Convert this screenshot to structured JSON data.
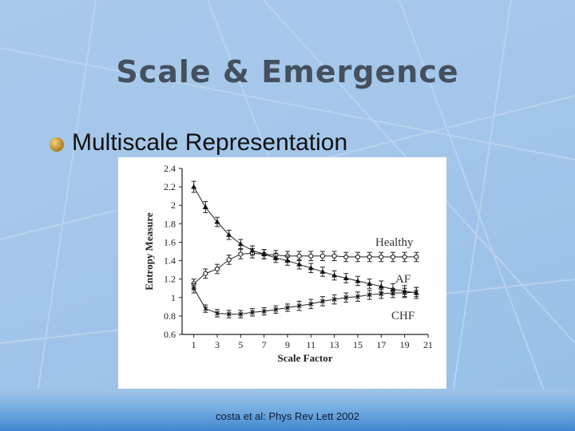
{
  "slide": {
    "title": "Scale & Emergence",
    "bullet": "Multiscale Representation",
    "citation": "costa et al:  Phys Rev Lett  2002"
  },
  "chart_data": {
    "type": "line",
    "xlabel": "Scale Factor",
    "ylabel": "Entropy Measure",
    "xlim": [
      0,
      21
    ],
    "ylim": [
      0.6,
      2.4
    ],
    "x_ticks": [
      "1",
      "3",
      "5",
      "7",
      "9",
      "11",
      "13",
      "15",
      "17",
      "19",
      "21"
    ],
    "y_ticks": [
      "0.6",
      "0.8",
      "1",
      "1.2",
      "1.4",
      "1.6",
      "1.8",
      "2",
      "2.2",
      "2.4"
    ],
    "x": [
      1,
      2,
      3,
      4,
      5,
      6,
      7,
      8,
      9,
      10,
      11,
      12,
      13,
      14,
      15,
      16,
      17,
      18,
      19,
      20
    ],
    "series": [
      {
        "name": "Healthy",
        "marker": "circle",
        "values": [
          1.15,
          1.26,
          1.31,
          1.41,
          1.47,
          1.48,
          1.47,
          1.46,
          1.45,
          1.45,
          1.45,
          1.45,
          1.45,
          1.44,
          1.44,
          1.44,
          1.44,
          1.44,
          1.44,
          1.44
        ],
        "errors": [
          0.05,
          0.05,
          0.05,
          0.05,
          0.05,
          0.05,
          0.05,
          0.05,
          0.05,
          0.05,
          0.05,
          0.05,
          0.05,
          0.05,
          0.05,
          0.05,
          0.05,
          0.05,
          0.05,
          0.05
        ]
      },
      {
        "name": "AF",
        "marker": "triangle",
        "values": [
          2.2,
          1.98,
          1.82,
          1.68,
          1.58,
          1.51,
          1.47,
          1.43,
          1.4,
          1.36,
          1.32,
          1.28,
          1.24,
          1.21,
          1.18,
          1.15,
          1.12,
          1.09,
          1.07,
          1.05
        ],
        "errors": [
          0.06,
          0.06,
          0.05,
          0.05,
          0.05,
          0.05,
          0.05,
          0.05,
          0.05,
          0.05,
          0.05,
          0.05,
          0.05,
          0.05,
          0.05,
          0.05,
          0.06,
          0.06,
          0.06,
          0.06
        ]
      },
      {
        "name": "CHF",
        "marker": "x",
        "values": [
          1.1,
          0.88,
          0.83,
          0.82,
          0.82,
          0.84,
          0.85,
          0.87,
          0.89,
          0.91,
          0.93,
          0.96,
          0.98,
          1.0,
          1.01,
          1.03,
          1.04,
          1.05,
          1.05,
          1.06
        ],
        "errors": [
          0.05,
          0.04,
          0.04,
          0.04,
          0.04,
          0.04,
          0.04,
          0.04,
          0.04,
          0.05,
          0.05,
          0.05,
          0.05,
          0.05,
          0.05,
          0.05,
          0.05,
          0.05,
          0.05,
          0.05
        ]
      }
    ],
    "grid": false,
    "legend": "inline labels at right"
  }
}
